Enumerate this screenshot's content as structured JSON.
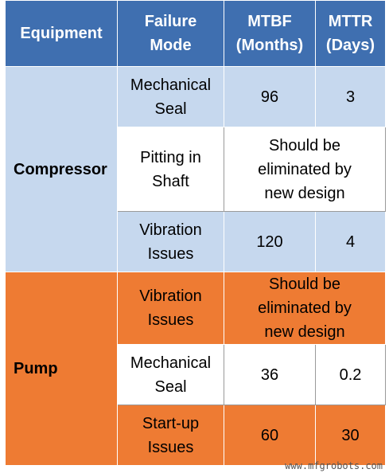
{
  "headers": {
    "equipment": "Equipment",
    "failure_mode_line1": "Failure",
    "failure_mode_line2": "Mode",
    "mtbf_line1": "MTBF",
    "mtbf_line2": "(Months)",
    "mttr_line1": "MTTR",
    "mttr_line2": "(Days)"
  },
  "compressor": {
    "name": "Compressor",
    "rows": [
      {
        "mode_line1": "Mechanical",
        "mode_line2": "Seal",
        "mtbf": "96",
        "mttr": "3"
      },
      {
        "mode_line1": "Pitting in",
        "mode_line2": "Shaft",
        "note_line1": "Should be",
        "note_line2": "eliminated by",
        "note_line3": "new design"
      },
      {
        "mode_line1": "Vibration",
        "mode_line2": "Issues",
        "mtbf": "120",
        "mttr": "4"
      }
    ]
  },
  "pump": {
    "name": "Pump",
    "rows": [
      {
        "mode_line1": "Vibration",
        "mode_line2": "Issues",
        "note_line1": "Should be",
        "note_line2": "eliminated by",
        "note_line3": "new design"
      },
      {
        "mode_line1": "Mechanical",
        "mode_line2": "Seal",
        "mtbf": "36",
        "mttr": "0.2"
      },
      {
        "mode_line1": "Start-up",
        "mode_line2": "Issues",
        "mtbf": "60",
        "mttr": "30"
      }
    ]
  },
  "watermark": "www.mfgrobots.com",
  "colors": {
    "header": "#3f6fb0",
    "compressor": "#c6d8ee",
    "pump": "#ee7b33"
  }
}
